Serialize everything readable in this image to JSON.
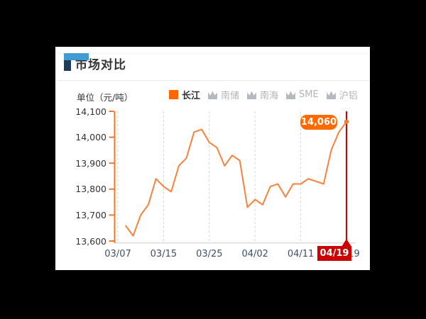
{
  "window": {
    "background": "#000000"
  },
  "card": {
    "title": "市场对比",
    "accent_blue": "#3f9bd4",
    "accent_navy": "#1d3c5c"
  },
  "legend": {
    "unit_label": "单位（元/吨）",
    "items": [
      {
        "label": "长江",
        "active": true,
        "color": "#ff6600"
      },
      {
        "label": "南储",
        "active": false,
        "color": "#b3b3b3"
      },
      {
        "label": "南海",
        "active": false,
        "color": "#b3b3b3"
      },
      {
        "label": "SME",
        "active": false,
        "color": "#b3b3b3"
      },
      {
        "label": "沪铝",
        "active": false,
        "color": "#b3b3b3"
      }
    ]
  },
  "chart_data": {
    "type": "line",
    "title": "市场对比",
    "ylabel": "单位（元/吨）",
    "ylim": [
      13600,
      14100
    ],
    "y_tick_values": [
      14100,
      14000,
      13900,
      13800,
      13700,
      13600
    ],
    "y_tick_labels": [
      "14,100",
      "14,000",
      "13,900",
      "13,800",
      "13,700",
      "13,600"
    ],
    "x_tick_labels": [
      "03/07",
      "03/15",
      "03/25",
      "04/02",
      "04/11",
      "04/19"
    ],
    "x_tick_data_indices": [
      -1,
      5,
      11,
      17,
      23,
      29
    ],
    "points_start_offset_days": 1,
    "grid": "vertical-dashed",
    "legend_position": "top",
    "series": [
      {
        "name": "长江",
        "color": "#f9813b",
        "values": [
          13660,
          13620,
          13700,
          13740,
          13840,
          13810,
          13790,
          13890,
          13920,
          14020,
          14030,
          13980,
          13960,
          13890,
          13930,
          13910,
          13730,
          13760,
          13740,
          13810,
          13820,
          13770,
          13820,
          13820,
          13840,
          13830,
          13820,
          13950,
          14020,
          14060
        ]
      }
    ],
    "inactive_series": [
      "南储",
      "南海",
      "SME",
      "沪铝"
    ],
    "axis_color_orange": "#ef7726",
    "grid_color": "#d5d5d5",
    "marker_color": "#cc0000",
    "last_point": {
      "value": 14060,
      "label": "14,060",
      "date_label": "04/19"
    }
  },
  "annotations": {
    "last_value_label": "14,060",
    "last_date_label": "04/19"
  }
}
